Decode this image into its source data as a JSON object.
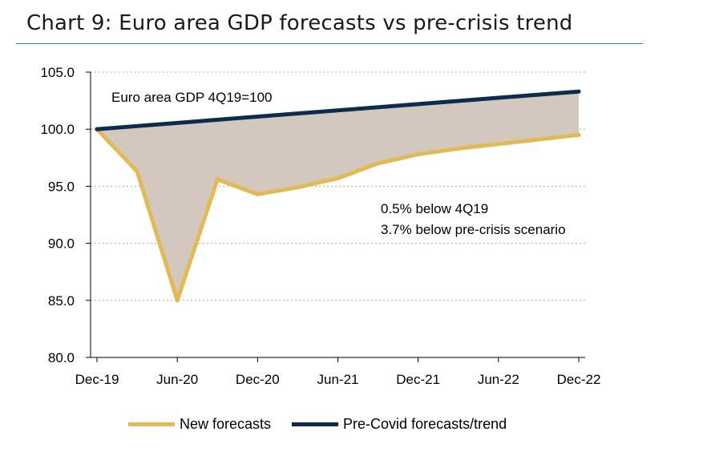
{
  "chart_title": "Chart 9: Euro area GDP forecasts vs pre-crisis trend",
  "chart_data": {
    "type": "line",
    "title": "Chart 9: Euro area GDP forecasts vs pre-crisis trend",
    "x_labels": [
      "Dec-19",
      "Jun-20",
      "Dec-20",
      "Jun-21",
      "Dec-21",
      "Jun-22",
      "Dec-22"
    ],
    "ylim": [
      80.0,
      105.0
    ],
    "yticks": [
      "80.0",
      "85.0",
      "90.0",
      "95.0",
      "100.0",
      "105.0"
    ],
    "grid": true,
    "legend_position": "bottom",
    "series": [
      {
        "name": "New forecasts",
        "color": "#e2ba55",
        "x": [
          "Dec-19",
          "Mar-20",
          "Jun-20",
          "Sep-20",
          "Dec-20",
          "Mar-21",
          "Jun-21",
          "Sep-21",
          "Dec-21",
          "Mar-22",
          "Jun-22",
          "Sep-22",
          "Dec-22"
        ],
        "values": [
          100.0,
          96.3,
          85.0,
          95.6,
          94.3,
          94.9,
          95.7,
          97.0,
          97.8,
          98.3,
          98.7,
          99.1,
          99.5
        ]
      },
      {
        "name": "Pre-Covid forecasts/trend",
        "color": "#0d2b4e",
        "x": [
          "Dec-19",
          "Dec-22"
        ],
        "values": [
          100.0,
          103.3
        ]
      }
    ],
    "annotations": [
      "Euro area GDP 4Q19=100",
      "0.5% below 4Q19",
      "3.7%  below pre-crisis scenario"
    ],
    "shading_color": "#d2c8bd"
  }
}
